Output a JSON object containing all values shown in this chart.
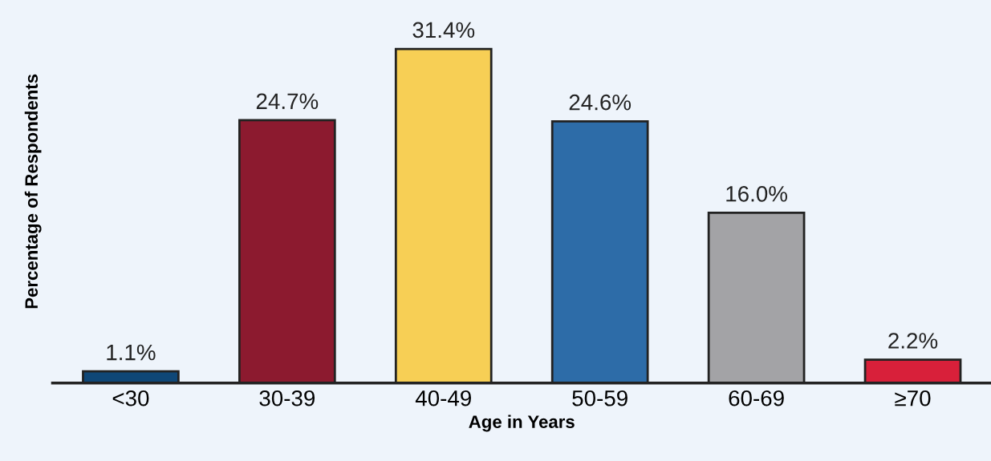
{
  "chart_data": {
    "type": "bar",
    "xlabel": "Age in Years",
    "ylabel": "Percentage of Respondents",
    "categories": [
      "<30",
      "30-39",
      "40-49",
      "50-59",
      "60-69",
      "≥70"
    ],
    "values": [
      1.1,
      24.7,
      31.4,
      24.6,
      16.0,
      2.2
    ],
    "value_labels": [
      "1.1%",
      "24.7%",
      "31.4%",
      "24.6%",
      "16.0%",
      "2.2%"
    ],
    "colors": [
      "#0f4777",
      "#8c1a2f",
      "#f7cf55",
      "#2d6ca8",
      "#a3a3a6",
      "#d8203a"
    ],
    "ylim": [
      0,
      36
    ],
    "tick_labels": "x",
    "grid": false,
    "legend": false
  }
}
